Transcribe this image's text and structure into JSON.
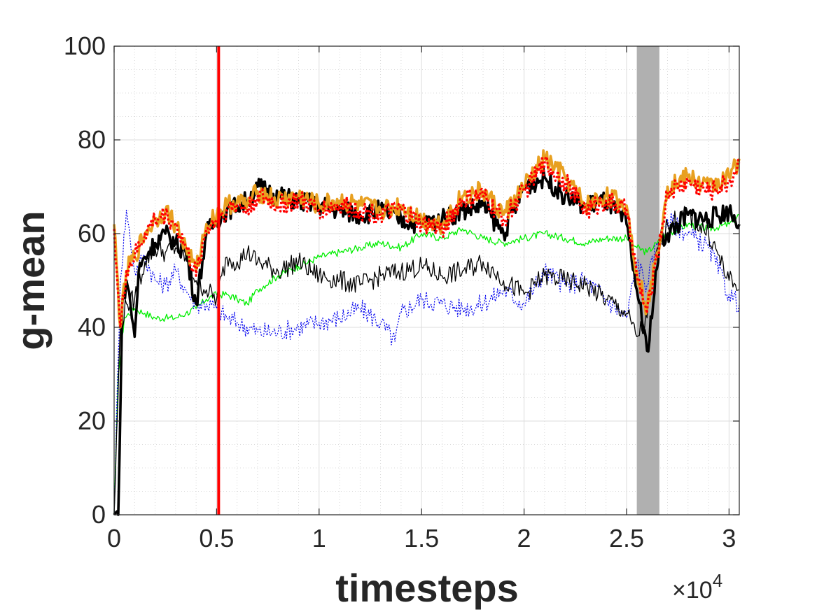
{
  "chart_data": {
    "type": "line",
    "xlabel": "timesteps",
    "ylabel": "g-mean",
    "x_exponent_label": "×10",
    "x_exponent_power": "4",
    "xlim": [
      0,
      30500
    ],
    "ylim": [
      0,
      100
    ],
    "xticks": [
      0,
      5000,
      10000,
      15000,
      20000,
      25000,
      30000
    ],
    "xtick_labels": [
      "0",
      "0.5",
      "1",
      "1.5",
      "2",
      "2.5",
      "3"
    ],
    "yticks": [
      0,
      20,
      40,
      60,
      80,
      100
    ],
    "ytick_labels": [
      "0",
      "20",
      "40",
      "60",
      "80",
      "100"
    ],
    "grid": true,
    "minor_grid": true,
    "vertical_line": {
      "x": 5100,
      "color": "#ff0000"
    },
    "shaded_band": {
      "x_start": 25500,
      "x_end": 26600,
      "color": "#b0b0b0"
    },
    "series": [
      {
        "color": "#00ee00",
        "style": "thin-solid",
        "x": [
          0,
          200,
          500,
          1000,
          1500,
          2000,
          2500,
          3000,
          3500,
          4000,
          4500,
          5000,
          5500,
          6000,
          6500,
          7000,
          8000,
          9000,
          10000,
          11000,
          12000,
          13000,
          14000,
          15000,
          16000,
          17000,
          18000,
          19000,
          20000,
          21000,
          22000,
          23000,
          24000,
          25000,
          25500,
          26000,
          26500,
          27000,
          28000,
          29000,
          30000,
          30500
        ],
        "y": [
          0,
          30,
          42,
          44,
          43,
          42,
          42,
          42,
          43,
          44,
          46,
          47,
          47,
          46,
          45,
          48,
          51,
          53,
          55,
          56,
          57,
          58,
          57,
          60,
          59,
          61,
          59,
          58,
          59,
          60,
          59,
          58,
          59,
          59,
          57,
          56,
          58,
          60,
          62,
          61,
          62,
          64
        ]
      },
      {
        "color": "#0000ee",
        "style": "thin-dotted",
        "x": [
          0,
          300,
          600,
          800,
          1000,
          1500,
          2000,
          2500,
          3000,
          3500,
          4000,
          4500,
          5000,
          5500,
          6000,
          7000,
          8000,
          9000,
          10000,
          11000,
          12000,
          13000,
          13700,
          14000,
          15000,
          16000,
          17000,
          18000,
          19000,
          20000,
          21000,
          22000,
          23000,
          24000,
          25000,
          25500,
          26000,
          26500,
          27000,
          28000,
          29000,
          30000,
          30500
        ],
        "y": [
          0,
          50,
          65,
          58,
          52,
          55,
          50,
          49,
          52,
          48,
          45,
          45,
          44,
          42,
          41,
          39,
          39,
          40,
          41,
          42,
          44,
          41,
          37,
          43,
          46,
          45,
          44,
          45,
          48,
          45,
          52,
          49,
          50,
          46,
          42,
          54,
          49,
          58,
          63,
          60,
          57,
          47,
          45
        ]
      },
      {
        "color": "#000000",
        "style": "thin-solid",
        "x": [
          0,
          300,
          600,
          1000,
          1500,
          2000,
          2500,
          3000,
          3500,
          4000,
          4500,
          5000,
          5500,
          6000,
          6500,
          7000,
          8000,
          9000,
          10000,
          11000,
          12000,
          13000,
          14000,
          15000,
          16000,
          17000,
          18000,
          19000,
          20000,
          21000,
          22000,
          23000,
          24000,
          25000,
          25500,
          26000,
          26500,
          27000,
          28000,
          29000,
          30000,
          30500
        ],
        "y": [
          0,
          40,
          45,
          46,
          54,
          57,
          56,
          57,
          55,
          50,
          48,
          46,
          55,
          54,
          56,
          54,
          52,
          54,
          51,
          50,
          49,
          51,
          52,
          53,
          51,
          52,
          54,
          50,
          47,
          51,
          50,
          49,
          46,
          43,
          38,
          42,
          57,
          62,
          64,
          60,
          50,
          48
        ]
      },
      {
        "color": "#000000",
        "style": "thick-solid",
        "x": [
          0,
          200,
          400,
          600,
          800,
          1000,
          1200,
          1500,
          2000,
          2500,
          3000,
          3500,
          4000,
          4500,
          5000,
          5500,
          6000,
          6500,
          7000,
          8000,
          9000,
          10000,
          11000,
          12000,
          13000,
          14000,
          15000,
          16000,
          17000,
          18000,
          19000,
          20000,
          21000,
          22000,
          23000,
          24000,
          25000,
          25500,
          26000,
          26300,
          26600,
          27000,
          28000,
          29000,
          30000,
          30500
        ],
        "y": [
          0,
          0,
          45,
          50,
          45,
          38,
          52,
          55,
          58,
          60,
          58,
          56,
          45,
          60,
          63,
          65,
          66,
          67,
          70,
          68,
          67,
          66,
          65,
          64,
          65,
          63,
          62,
          63,
          65,
          66,
          60,
          70,
          72,
          68,
          66,
          67,
          62,
          48,
          35,
          45,
          58,
          60,
          64,
          63,
          65,
          62
        ]
      },
      {
        "color": "#e8a020",
        "style": "thick-solid",
        "x": [
          0,
          300,
          600,
          1000,
          1500,
          2000,
          2500,
          3000,
          3500,
          4000,
          4500,
          5000,
          5500,
          6000,
          6500,
          7000,
          8000,
          9000,
          10000,
          11000,
          12000,
          13000,
          14000,
          15000,
          16000,
          17000,
          18000,
          19000,
          20000,
          21000,
          22000,
          23000,
          24000,
          25000,
          25500,
          26000,
          26500,
          27000,
          28000,
          29000,
          30000,
          30500
        ],
        "y": [
          62,
          40,
          52,
          55,
          60,
          63,
          65,
          62,
          57,
          52,
          62,
          64,
          66,
          67,
          66,
          69,
          67,
          68,
          66,
          67,
          66,
          65,
          66,
          63,
          62,
          68,
          69,
          64,
          70,
          76,
          72,
          66,
          68,
          66,
          52,
          44,
          56,
          70,
          72,
          70,
          72,
          76
        ]
      },
      {
        "color": "#ff0000",
        "style": "dotted",
        "x": [
          0,
          300,
          600,
          1000,
          1500,
          2000,
          2500,
          3000,
          3500,
          4000,
          4500,
          5000,
          5500,
          6000,
          6500,
          7000,
          8000,
          9000,
          10000,
          11000,
          12000,
          13000,
          14000,
          15000,
          16000,
          17000,
          18000,
          19000,
          20000,
          21000,
          22000,
          23000,
          24000,
          25000,
          25500,
          26000,
          26500,
          27000,
          28000,
          29000,
          30000,
          30500
        ],
        "y": [
          61,
          40,
          52,
          55,
          60,
          63,
          64,
          62,
          57,
          51,
          61,
          63,
          65,
          66,
          65,
          68,
          66,
          67,
          65,
          66,
          65,
          64,
          65,
          62,
          61,
          67,
          68,
          63,
          69,
          75,
          71,
          65,
          67,
          65,
          51,
          43,
          55,
          69,
          71,
          69,
          71,
          75
        ]
      }
    ]
  }
}
